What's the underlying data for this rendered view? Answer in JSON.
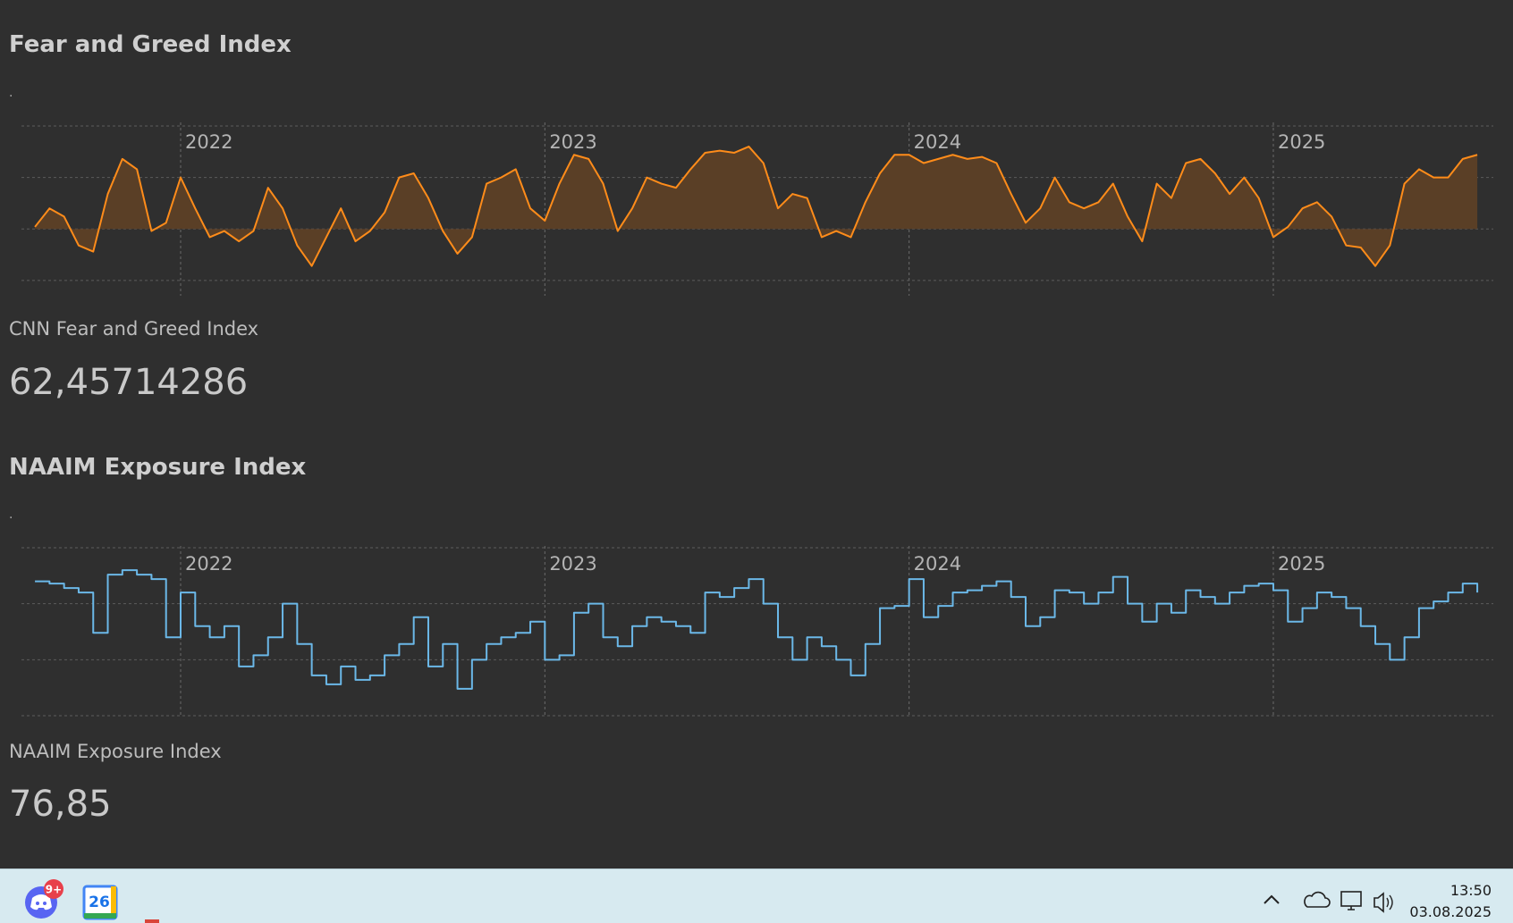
{
  "chart_data": [
    {
      "type": "area",
      "title": "Fear and Greed Index",
      "subtitle": ".",
      "color": "#ff8c1a",
      "fill": "#5a3f26",
      "area_baseline": 50,
      "x": [
        2021.6,
        2021.64,
        2021.68,
        2021.72,
        2021.76,
        2021.8,
        2021.84,
        2021.88,
        2021.92,
        2021.96,
        2022,
        2022.04,
        2022.08,
        2022.12,
        2022.16,
        2022.2,
        2022.24,
        2022.28,
        2022.32,
        2022.36,
        2022.4,
        2022.44,
        2022.48,
        2022.52,
        2022.56,
        2022.6,
        2022.64,
        2022.68,
        2022.72,
        2022.76,
        2022.8,
        2022.84,
        2022.88,
        2022.92,
        2022.96,
        2023,
        2023.04,
        2023.08,
        2023.12,
        2023.16,
        2023.2,
        2023.24,
        2023.28,
        2023.32,
        2023.36,
        2023.4,
        2023.44,
        2023.48,
        2023.52,
        2023.56,
        2023.6,
        2023.64,
        2023.68,
        2023.72,
        2023.76,
        2023.8,
        2023.84,
        2023.88,
        2023.92,
        2023.96,
        2024,
        2024.04,
        2024.08,
        2024.12,
        2024.16,
        2024.2,
        2024.24,
        2024.28,
        2024.32,
        2024.36,
        2024.4,
        2024.44,
        2024.48,
        2024.52,
        2024.56,
        2024.6,
        2024.64,
        2024.68,
        2024.72,
        2024.76,
        2024.8,
        2024.84,
        2024.88,
        2024.92,
        2024.96,
        2025,
        2025.04,
        2025.08,
        2025.12,
        2025.16,
        2025.2,
        2025.24,
        2025.28,
        2025.32,
        2025.36,
        2025.4,
        2025.44,
        2025.48,
        2025.52,
        2025.56
      ],
      "values": [
        51,
        60,
        56,
        42,
        39,
        67,
        84,
        79,
        49,
        53,
        75,
        60,
        46,
        49,
        44,
        49,
        70,
        60,
        42,
        32,
        46,
        60,
        44,
        49,
        58,
        75,
        77,
        65,
        49,
        38,
        46,
        72,
        75,
        79,
        60,
        54,
        72,
        86,
        84,
        72,
        49,
        60,
        75,
        72,
        70,
        79,
        87,
        88,
        87,
        90,
        82,
        60,
        67,
        65,
        46,
        49,
        46,
        63,
        77,
        86,
        86,
        82,
        84,
        86,
        84,
        85,
        82,
        67,
        53,
        60,
        75,
        63,
        60,
        63,
        72,
        56,
        44,
        72,
        65,
        82,
        84,
        77,
        67,
        75,
        65,
        46,
        51,
        60,
        63,
        56,
        42,
        41,
        32,
        42,
        72,
        79,
        75,
        75,
        84,
        86
      ],
      "xlim": [
        2021.563,
        2025.604
      ],
      "xticks": [
        2022,
        2023,
        2024,
        2025
      ],
      "ylim": [
        18,
        100
      ],
      "yticks": [
        25,
        50,
        75,
        100
      ],
      "grid": true,
      "step": false
    },
    {
      "type": "line",
      "title": "NAAIM Exposure Index",
      "subtitle": ".",
      "color": "#6bb8e8",
      "step": true,
      "x": [
        2021.6,
        2021.64,
        2021.68,
        2021.72,
        2021.76,
        2021.8,
        2021.84,
        2021.88,
        2021.92,
        2021.96,
        2022,
        2022.04,
        2022.08,
        2022.12,
        2022.16,
        2022.2,
        2022.24,
        2022.28,
        2022.32,
        2022.36,
        2022.4,
        2022.44,
        2022.48,
        2022.52,
        2022.56,
        2022.6,
        2022.64,
        2022.68,
        2022.72,
        2022.76,
        2022.8,
        2022.84,
        2022.88,
        2022.92,
        2022.96,
        2023,
        2023.04,
        2023.08,
        2023.12,
        2023.16,
        2023.2,
        2023.24,
        2023.28,
        2023.32,
        2023.36,
        2023.4,
        2023.44,
        2023.48,
        2023.52,
        2023.56,
        2023.6,
        2023.64,
        2023.68,
        2023.72,
        2023.76,
        2023.8,
        2023.84,
        2023.88,
        2023.92,
        2023.96,
        2024,
        2024.04,
        2024.08,
        2024.12,
        2024.16,
        2024.2,
        2024.24,
        2024.28,
        2024.32,
        2024.36,
        2024.4,
        2024.44,
        2024.48,
        2024.52,
        2024.56,
        2024.6,
        2024.64,
        2024.68,
        2024.72,
        2024.76,
        2024.8,
        2024.84,
        2024.88,
        2024.92,
        2024.96,
        2025,
        2025.04,
        2025.08,
        2025.12,
        2025.16,
        2025.2,
        2025.24,
        2025.28,
        2025.32,
        2025.36,
        2025.4,
        2025.44,
        2025.48,
        2025.52,
        2025.56
      ],
      "values": [
        85,
        84,
        82,
        80,
        62,
        88,
        90,
        88,
        86,
        60,
        80,
        65,
        60,
        65,
        47,
        52,
        60,
        75,
        57,
        43,
        39,
        47,
        41,
        43,
        52,
        57,
        69,
        47,
        57,
        37,
        50,
        57,
        60,
        62,
        67,
        50,
        52,
        71,
        75,
        60,
        56,
        65,
        69,
        67,
        65,
        62,
        80,
        78,
        82,
        86,
        75,
        60,
        50,
        60,
        56,
        50,
        43,
        57,
        73,
        74,
        86,
        69,
        74,
        80,
        81,
        83,
        85,
        78,
        65,
        69,
        81,
        80,
        75,
        80,
        87,
        75,
        67,
        75,
        71,
        81,
        78,
        75,
        80,
        83,
        84,
        81,
        67,
        73,
        80,
        78,
        73,
        65,
        57,
        50,
        60,
        73,
        76,
        80,
        84,
        80
      ],
      "xlim": [
        2021.563,
        2025.604
      ],
      "xticks": [
        2022,
        2023,
        2024,
        2025
      ],
      "ylim": [
        25,
        100
      ],
      "yticks": [
        25,
        50,
        75,
        100
      ],
      "grid": true
    }
  ],
  "cards": [
    {
      "label": "CNN Fear and Greed Index",
      "value": "62,45714286"
    },
    {
      "label": "NAAIM Exposure Index",
      "value": "76,85"
    }
  ],
  "taskbar": {
    "discord_badge": "9+",
    "calendar_day": "26",
    "time": "13:50",
    "date": "03.08.2025"
  }
}
